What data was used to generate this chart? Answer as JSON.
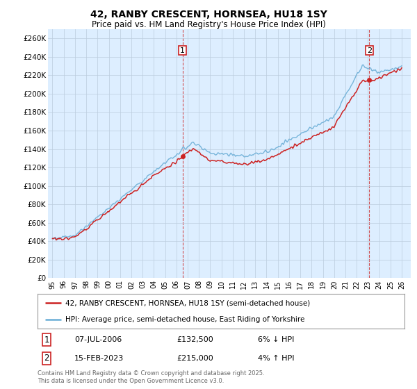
{
  "title_line1": "42, RANBY CRESCENT, HORNSEA, HU18 1SY",
  "title_line2": "Price paid vs. HM Land Registry's House Price Index (HPI)",
  "ylim": [
    0,
    270000
  ],
  "yticks": [
    0,
    20000,
    40000,
    60000,
    80000,
    100000,
    120000,
    140000,
    160000,
    180000,
    200000,
    220000,
    240000,
    260000
  ],
  "ytick_labels": [
    "£0",
    "£20K",
    "£40K",
    "£60K",
    "£80K",
    "£100K",
    "£120K",
    "£140K",
    "£160K",
    "£180K",
    "£200K",
    "£220K",
    "£240K",
    "£260K"
  ],
  "hpi_color": "#6baed6",
  "price_color": "#cc2222",
  "plot_bg_color": "#ddeeff",
  "marker1_date": "07-JUL-2006",
  "marker1_price": "£132,500",
  "marker1_pct": "6% ↓ HPI",
  "marker2_date": "15-FEB-2023",
  "marker2_price": "£215,000",
  "marker2_pct": "4% ↑ HPI",
  "legend_line1": "42, RANBY CRESCENT, HORNSEA, HU18 1SY (semi-detached house)",
  "legend_line2": "HPI: Average price, semi-detached house, East Riding of Yorkshire",
  "footnote": "Contains HM Land Registry data © Crown copyright and database right 2025.\nThis data is licensed under the Open Government Licence v3.0.",
  "background_color": "#ffffff",
  "grid_color": "#bbccdd",
  "xstart_year": 1995,
  "xend_year": 2026,
  "sale1_year": 2006.54,
  "sale1_price": 132500,
  "sale2_year": 2023.12,
  "sale2_price": 215000
}
